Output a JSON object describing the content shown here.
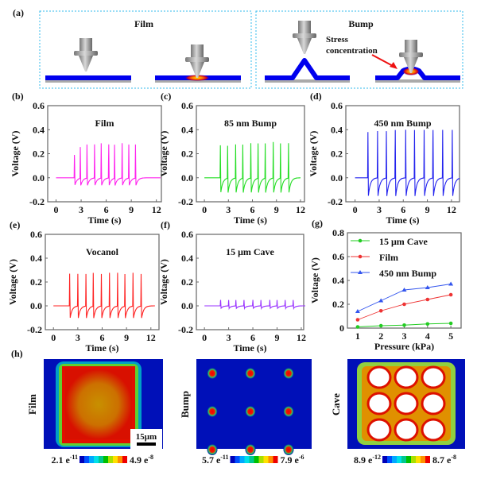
{
  "panel_a": {
    "label": "(a)",
    "film_title": "Film",
    "bump_title": "Bump",
    "annotation_line1": "Stress",
    "annotation_line2": "concentration"
  },
  "panel_h": {
    "label": "(h)",
    "scale_bar": "15μm",
    "maps": [
      {
        "name": "Film",
        "min_base": "2.1 e",
        "min_exp": "-11",
        "max_base": "4.9 e",
        "max_exp": "-8"
      },
      {
        "name": "Bump",
        "min_base": "5.7 e",
        "min_exp": "-11",
        "max_base": "7.9 e",
        "max_exp": "-6"
      },
      {
        "name": "Cave",
        "min_base": "8.9 e",
        "min_exp": "-12",
        "max_base": "8.7 e",
        "max_exp": "-8"
      }
    ],
    "colormap": [
      "#0000b8",
      "#0050ff",
      "#00a8ff",
      "#00e0e8",
      "#00c890",
      "#00c000",
      "#a8e000",
      "#ffe000",
      "#ff9000",
      "#ee0000"
    ]
  },
  "chart_data": [
    {
      "type": "line",
      "label": "(b)",
      "title": "Film",
      "xlabel": "Time (s)",
      "ylabel": "Voltage (V)",
      "xlim": [
        -1,
        12.6
      ],
      "ylim": [
        -0.2,
        0.6
      ],
      "xticks": [
        "0",
        "3",
        "6",
        "9",
        "12"
      ],
      "yticks": [
        "-0.2",
        "0.0",
        "0.2",
        "0.4",
        "0.6"
      ],
      "color": "#ff22ee",
      "t_range": [
        0,
        12.5
      ],
      "peak_times": [
        2.2,
        2.9,
        3.7,
        4.6,
        5.4,
        6.3,
        7.0,
        7.9,
        8.7,
        9.5
      ],
      "peak_values": [
        0.19,
        0.26,
        0.28,
        0.28,
        0.29,
        0.28,
        0.28,
        0.29,
        0.28,
        0.28
      ],
      "trough_value": -0.06
    },
    {
      "type": "line",
      "label": "(c)",
      "title": "85 nm Bump",
      "xlabel": "Time (s)",
      "ylabel": "Voltage (V)",
      "xlim": [
        -1,
        12.5
      ],
      "ylim": [
        -0.2,
        0.6
      ],
      "xticks": [
        "0",
        "3",
        "6",
        "9",
        "12"
      ],
      "yticks": [
        "-0.2",
        "0.0",
        "0.2",
        "0.4",
        "0.6"
      ],
      "color": "#22dd22",
      "t_range": [
        0,
        12
      ],
      "peak_times": [
        2.0,
        2.9,
        3.9,
        4.8,
        5.8,
        6.7,
        7.6,
        8.6,
        9.5,
        10.5
      ],
      "peak_values": [
        0.27,
        0.27,
        0.28,
        0.28,
        0.29,
        0.29,
        0.29,
        0.3,
        0.29,
        0.29
      ],
      "trough_value": -0.12
    },
    {
      "type": "line",
      "label": "(d)",
      "title": "450 nm Bump",
      "xlabel": "Time (s)",
      "ylabel": "Voltage (V)",
      "xlim": [
        -1.15,
        13
      ],
      "ylim": [
        -0.2,
        0.6
      ],
      "xticks": [
        "0",
        "3",
        "6",
        "9",
        "12"
      ],
      "yticks": [
        "-0.2",
        "0.0",
        "0.2",
        "0.4",
        "0.6"
      ],
      "color": "#2222ee",
      "t_range": [
        0,
        13
      ],
      "peak_times": [
        1.6,
        2.8,
        3.9,
        5.0,
        6.3,
        7.4,
        8.6,
        9.7,
        10.9,
        12.1
      ],
      "peak_values": [
        0.38,
        0.39,
        0.39,
        0.4,
        0.4,
        0.4,
        0.4,
        0.4,
        0.4,
        0.4
      ],
      "trough_value": -0.15
    },
    {
      "type": "line",
      "label": "(e)",
      "title": "Vocanol",
      "xlabel": "Time (s)",
      "ylabel": "Voltage (V)",
      "xlim": [
        -1,
        13
      ],
      "ylim": [
        -0.2,
        0.6
      ],
      "xticks": [
        "0",
        "3",
        "6",
        "9",
        "12"
      ],
      "yticks": [
        "-0.2",
        "0.0",
        "0.2",
        "0.4",
        "0.6"
      ],
      "color": "#ff2222",
      "t_range": [
        0,
        12.5
      ],
      "peak_times": [
        2.0,
        3.0,
        4.0,
        4.9,
        5.9,
        6.9,
        7.9,
        8.8,
        9.8,
        10.8
      ],
      "peak_values": [
        0.27,
        0.27,
        0.27,
        0.28,
        0.27,
        0.28,
        0.28,
        0.27,
        0.28,
        0.27
      ],
      "trough_value": -0.1
    },
    {
      "type": "line",
      "label": "(f)",
      "title": "15 μm Cave",
      "xlabel": "Time (s)",
      "ylabel": "Voltage (V)",
      "xlim": [
        -1,
        12.3
      ],
      "ylim": [
        -0.2,
        0.6
      ],
      "xticks": [
        "0",
        "3",
        "6",
        "9",
        "12"
      ],
      "yticks": [
        "-0.2",
        "0.0",
        "0.2",
        "0.4",
        "0.6"
      ],
      "color": "#9933ff",
      "t_range": [
        0,
        12.5
      ],
      "peak_times": [
        2.0,
        3.0,
        3.9,
        4.9,
        6.0,
        7.0,
        8.1,
        9.0,
        10.0,
        11.0
      ],
      "peak_values": [
        0.05,
        0.05,
        0.05,
        0.05,
        0.05,
        0.05,
        0.05,
        0.05,
        0.05,
        0.05
      ],
      "trough_value": -0.02
    },
    {
      "type": "line",
      "label": "(g)",
      "xlabel": "Pressure (kPa)",
      "ylabel": "Voltage (V)",
      "xlim": [
        0.56,
        5.44
      ],
      "ylim": [
        0,
        0.8
      ],
      "xticks": [
        "1",
        "2",
        "3",
        "4",
        "5"
      ],
      "yticks": [
        "0",
        "0.2",
        "0.4",
        "0.6",
        "0.8"
      ],
      "x": [
        1,
        2,
        3,
        4,
        5
      ],
      "legend_position": "top-left",
      "series": [
        {
          "name": "15 μm Cave",
          "color": "#22cc22",
          "marker": "circle",
          "values": [
            0.01,
            0.02,
            0.025,
            0.035,
            0.04
          ]
        },
        {
          "name": "Film",
          "color": "#ee3333",
          "marker": "circle",
          "values": [
            0.07,
            0.145,
            0.2,
            0.24,
            0.28
          ]
        },
        {
          "name": "450 nm Bump",
          "color": "#3355ee",
          "marker": "triangle",
          "values": [
            0.14,
            0.23,
            0.32,
            0.34,
            0.37
          ]
        }
      ]
    }
  ]
}
